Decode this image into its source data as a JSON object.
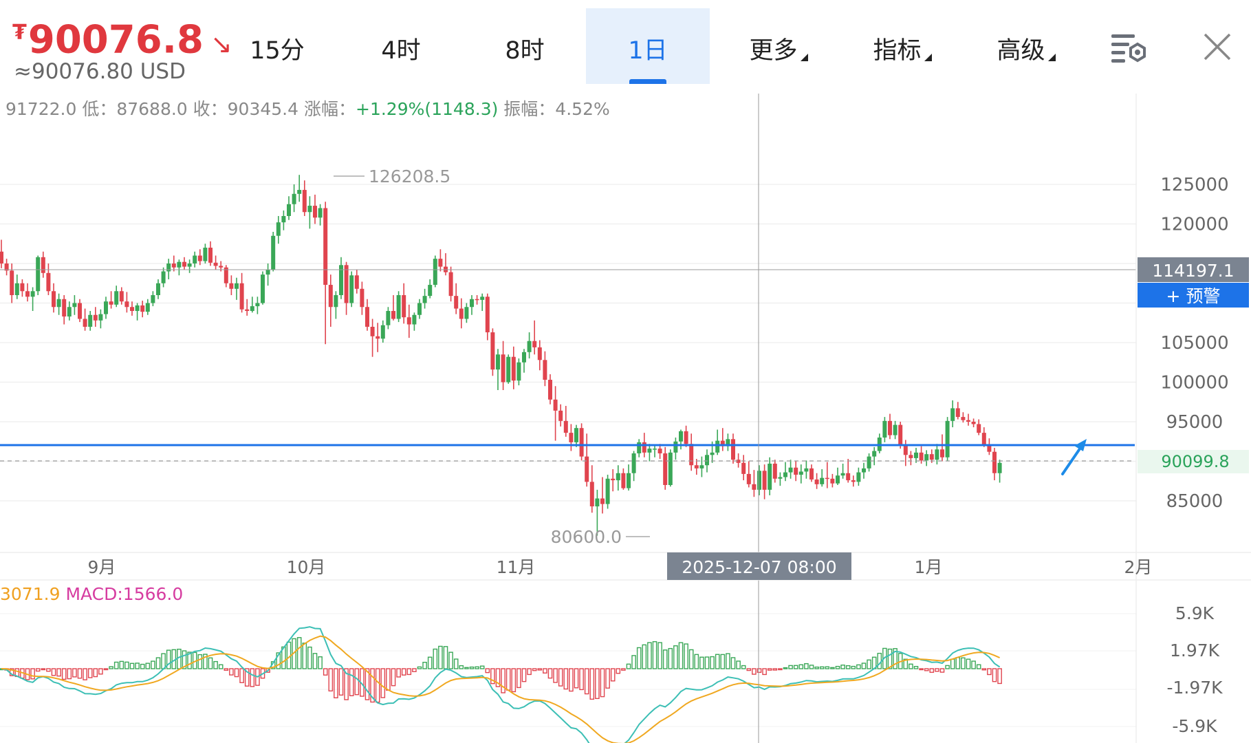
{
  "header": {
    "currency_symbol": "₮",
    "price": "90076.8",
    "trend_arrow": "↘",
    "usd_price": "≈90076.80 USD",
    "tabs": [
      {
        "label": "15分",
        "active": false,
        "dropdown": false
      },
      {
        "label": "4时",
        "active": false,
        "dropdown": false
      },
      {
        "label": "8时",
        "active": false,
        "dropdown": false
      },
      {
        "label": "1日",
        "active": true,
        "dropdown": false
      },
      {
        "label": "更多",
        "active": false,
        "dropdown": true
      },
      {
        "label": "指标",
        "active": false,
        "dropdown": true
      },
      {
        "label": "高级",
        "active": false,
        "dropdown": true
      }
    ],
    "icons": [
      "chart-settings-icon",
      "close-icon"
    ]
  },
  "info_bar": {
    "prefix": "91722.0 低：87688.0 收：90345.4 涨幅：",
    "change": "+1.29%(1148.3)",
    "suffix": " 振幅：4.52%"
  },
  "macd_info": {
    "dea": "3071.9",
    "macd": "MACD:1566.0"
  },
  "colors": {
    "up": "#3aa757",
    "down": "#e0444e",
    "accent": "#1d73e8",
    "dif_line": "#3cbfb5",
    "dea_line": "#f0a820",
    "current_price": "#2aa35a"
  },
  "chart_data": {
    "type": "candlestick",
    "interval": "1日",
    "y_axis_labels": [
      "125000",
      "120000",
      "105000",
      "100000",
      "95000",
      "85000"
    ],
    "y_range": [
      78000,
      134000
    ],
    "x_axis_labels": [
      "9月",
      "10月",
      "11月",
      "1月",
      "2月"
    ],
    "crosshair": {
      "label": "2025-12-07 08:00",
      "price": "114197.1"
    },
    "alert_button": "+ 预警",
    "current_price": "90099.8",
    "high_marker": "126208.5",
    "low_marker": "80600.0",
    "horizontal_line": 92300,
    "candles": [
      [
        116500,
        118000,
        114400,
        115000
      ],
      [
        115000,
        115600,
        113500,
        114100
      ],
      [
        114100,
        115000,
        110000,
        111000
      ],
      [
        111000,
        113600,
        110500,
        112500
      ],
      [
        112500,
        113000,
        110800,
        111500
      ],
      [
        111500,
        112500,
        110200,
        110800
      ],
      [
        110800,
        112000,
        109000,
        111500
      ],
      [
        111500,
        116000,
        111000,
        115800
      ],
      [
        115800,
        116500,
        113200,
        113800
      ],
      [
        113800,
        115000,
        111000,
        111500
      ],
      [
        111500,
        112500,
        108800,
        109500
      ],
      [
        109500,
        111200,
        108500,
        110500
      ],
      [
        110500,
        111000,
        107300,
        108300
      ],
      [
        108300,
        110200,
        107800,
        109500
      ],
      [
        109500,
        111000,
        108500,
        110000
      ],
      [
        110000,
        110500,
        107600,
        108000
      ],
      [
        108000,
        109300,
        106500,
        107000
      ],
      [
        107000,
        109000,
        106500,
        108500
      ],
      [
        108500,
        109500,
        107000,
        107800
      ],
      [
        107800,
        109200,
        106800,
        108600
      ],
      [
        108600,
        110800,
        108000,
        110200
      ],
      [
        110200,
        111500,
        109300,
        109800
      ],
      [
        109800,
        112200,
        109500,
        111500
      ],
      [
        111500,
        112000,
        109800,
        110200
      ],
      [
        110200,
        111400,
        108800,
        109500
      ],
      [
        109500,
        110200,
        108400,
        109000
      ],
      [
        109000,
        110000,
        107800,
        109700
      ],
      [
        109700,
        110300,
        108200,
        108900
      ],
      [
        108900,
        110500,
        108500,
        110000
      ],
      [
        110000,
        111500,
        109600,
        111000
      ],
      [
        111000,
        113000,
        110500,
        112500
      ],
      [
        112500,
        114500,
        112000,
        114000
      ],
      [
        114000,
        115600,
        113000,
        115000
      ],
      [
        115000,
        116000,
        114000,
        114500
      ],
      [
        114500,
        115500,
        113500,
        115200
      ],
      [
        115200,
        115800,
        114200,
        114600
      ],
      [
        114600,
        115500,
        113800,
        115000
      ],
      [
        115000,
        116500,
        114500,
        116000
      ],
      [
        116000,
        116800,
        114800,
        115300
      ],
      [
        115300,
        117500,
        115000,
        117000
      ],
      [
        117000,
        117800,
        114700,
        115100
      ],
      [
        115100,
        116000,
        114200,
        114700
      ],
      [
        114700,
        115300,
        114000,
        114500
      ],
      [
        114500,
        114800,
        112000,
        112500
      ],
      [
        112500,
        113500,
        111000,
        111800
      ],
      [
        111800,
        113200,
        110400,
        112500
      ],
      [
        112500,
        113800,
        108800,
        109200
      ],
      [
        109200,
        110500,
        108400,
        109000
      ],
      [
        109000,
        110800,
        108800,
        109600
      ],
      [
        109600,
        110800,
        108600,
        110000
      ],
      [
        110000,
        114000,
        109800,
        113600
      ],
      [
        113600,
        115000,
        112200,
        114200
      ],
      [
        114200,
        119000,
        114000,
        118500
      ],
      [
        118500,
        121000,
        117500,
        120200
      ],
      [
        120200,
        121700,
        119200,
        121000
      ],
      [
        121000,
        123500,
        120500,
        122500
      ],
      [
        122500,
        125000,
        121500,
        123800
      ],
      [
        123800,
        126200,
        122800,
        124300
      ],
      [
        124300,
        125500,
        121000,
        121500
      ],
      [
        121500,
        123500,
        119400,
        122300
      ],
      [
        122300,
        123700,
        120000,
        120800
      ],
      [
        120800,
        122500,
        119800,
        122000
      ],
      [
        122000,
        122800,
        104800,
        112300
      ],
      [
        112300,
        113600,
        107000,
        109500
      ],
      [
        109500,
        111500,
        108000,
        111000
      ],
      [
        111000,
        115800,
        110500,
        114800
      ],
      [
        114800,
        115200,
        108500,
        110000
      ],
      [
        110000,
        114000,
        109500,
        113500
      ],
      [
        113500,
        114200,
        111200,
        111800
      ],
      [
        111800,
        112700,
        108500,
        109500
      ],
      [
        109500,
        110500,
        106500,
        107000
      ],
      [
        107000,
        108000,
        103200,
        105800
      ],
      [
        105800,
        107500,
        103800,
        105500
      ],
      [
        105500,
        107800,
        105000,
        107200
      ],
      [
        107200,
        109500,
        106700,
        109000
      ],
      [
        109000,
        111000,
        107800,
        108000
      ],
      [
        108000,
        111500,
        107600,
        111000
      ],
      [
        111000,
        112500,
        107400,
        108200
      ],
      [
        108200,
        109800,
        105600,
        107300
      ],
      [
        107300,
        108800,
        106500,
        108500
      ],
      [
        108500,
        110500,
        108000,
        110000
      ],
      [
        110000,
        111800,
        109300,
        110900
      ],
      [
        110900,
        113000,
        110600,
        112300
      ],
      [
        112300,
        116000,
        112000,
        115600
      ],
      [
        115600,
        116800,
        114000,
        114600
      ],
      [
        114600,
        116300,
        113500,
        113900
      ],
      [
        113900,
        114600,
        110200,
        110900
      ],
      [
        110900,
        112500,
        108600,
        109300
      ],
      [
        109300,
        110600,
        106800,
        108000
      ],
      [
        108000,
        110000,
        107500,
        109500
      ],
      [
        109500,
        111000,
        108500,
        110500
      ],
      [
        110500,
        111000,
        109800,
        110400
      ],
      [
        110400,
        111200,
        109000,
        110800
      ],
      [
        110800,
        111200,
        105300,
        106300
      ],
      [
        106300,
        106800,
        100800,
        101600
      ],
      [
        101600,
        104200,
        99000,
        103500
      ],
      [
        103500,
        105200,
        99000,
        100000
      ],
      [
        100000,
        103500,
        99800,
        103200
      ],
      [
        103200,
        104500,
        99100,
        100200
      ],
      [
        100200,
        103000,
        99600,
        102500
      ],
      [
        102500,
        104200,
        101200,
        103800
      ],
      [
        103800,
        106300,
        103000,
        105200
      ],
      [
        105200,
        107800,
        103500,
        104400
      ],
      [
        104400,
        105300,
        101500,
        102800
      ],
      [
        102800,
        103900,
        99500,
        100300
      ],
      [
        100300,
        101000,
        97200,
        97800
      ],
      [
        97800,
        99500,
        92600,
        96400
      ],
      [
        96400,
        97200,
        94400,
        95100
      ],
      [
        95100,
        97000,
        93100,
        93600
      ],
      [
        93600,
        94700,
        91300,
        92400
      ],
      [
        92400,
        94600,
        91800,
        94200
      ],
      [
        94200,
        94800,
        90100,
        90600
      ],
      [
        90600,
        93500,
        86800,
        87400
      ],
      [
        87400,
        89500,
        83500,
        84300
      ],
      [
        84300,
        86400,
        80600,
        85300
      ],
      [
        85300,
        88000,
        83400,
        84600
      ],
      [
        84600,
        88300,
        84000,
        87800
      ],
      [
        87800,
        89000,
        86200,
        87600
      ],
      [
        87600,
        89500,
        86300,
        88500
      ],
      [
        88500,
        89100,
        86400,
        86600
      ],
      [
        86600,
        89600,
        86300,
        88500
      ],
      [
        88500,
        91300,
        87500,
        91000
      ],
      [
        91000,
        92800,
        90500,
        92400
      ],
      [
        92400,
        93600,
        90500,
        91100
      ],
      [
        91100,
        92200,
        90000,
        91600
      ],
      [
        91600,
        92100,
        90500,
        91600
      ],
      [
        91600,
        92200,
        90300,
        91000
      ],
      [
        91000,
        91800,
        86400,
        87000
      ],
      [
        87000,
        91500,
        86800,
        91100
      ],
      [
        91100,
        93000,
        90200,
        92500
      ],
      [
        92500,
        94000,
        91500,
        93800
      ],
      [
        93800,
        94500,
        91800,
        92200
      ],
      [
        92200,
        93500,
        88800,
        89500
      ],
      [
        89500,
        90300,
        88300,
        89100
      ],
      [
        89100,
        90600,
        88000,
        89500
      ],
      [
        89500,
        91500,
        88600,
        90800
      ],
      [
        90800,
        92500,
        89800,
        91100
      ],
      [
        91100,
        94000,
        90800,
        92600
      ],
      [
        92600,
        94200,
        91300,
        91900
      ],
      [
        91900,
        93500,
        91300,
        92800
      ],
      [
        92800,
        93500,
        89700,
        90200
      ],
      [
        90200,
        91000,
        89200,
        89800
      ],
      [
        89800,
        90800,
        87600,
        88400
      ],
      [
        88400,
        90000,
        86700,
        87100
      ],
      [
        87100,
        88900,
        85500,
        86400
      ],
      [
        86400,
        89500,
        85700,
        88800
      ],
      [
        88800,
        89600,
        85200,
        86400
      ],
      [
        86400,
        90500,
        85700,
        89700
      ],
      [
        89700,
        90200,
        87300,
        87800
      ],
      [
        87800,
        88600,
        86900,
        88000
      ],
      [
        88000,
        89900,
        87500,
        88600
      ],
      [
        88600,
        90200,
        87800,
        89200
      ],
      [
        89200,
        90000,
        87500,
        88300
      ],
      [
        88300,
        89600,
        87200,
        88700
      ],
      [
        88700,
        90100,
        87800,
        89100
      ],
      [
        89100,
        89600,
        87400,
        87700
      ],
      [
        87700,
        88500,
        86500,
        87100
      ],
      [
        87100,
        89000,
        86800,
        87900
      ],
      [
        87900,
        89900,
        86600,
        87800
      ],
      [
        87800,
        88400,
        86700,
        87200
      ],
      [
        87200,
        89200,
        87000,
        88200
      ],
      [
        88200,
        89700,
        87800,
        88500
      ],
      [
        88500,
        90300,
        87300,
        87600
      ],
      [
        87600,
        88200,
        86800,
        87400
      ],
      [
        87400,
        89200,
        86900,
        88600
      ],
      [
        88600,
        89800,
        87800,
        89100
      ],
      [
        89100,
        91000,
        88700,
        90600
      ],
      [
        90600,
        91800,
        89500,
        91300
      ],
      [
        91300,
        93500,
        91000,
        93000
      ],
      [
        93000,
        95600,
        92400,
        95100
      ],
      [
        95100,
        96000,
        92800,
        93300
      ],
      [
        93300,
        95100,
        92800,
        94600
      ],
      [
        94600,
        95000,
        91600,
        92000
      ],
      [
        92000,
        92700,
        89400,
        90800
      ],
      [
        90800,
        91300,
        89500,
        90400
      ],
      [
        90400,
        91700,
        89800,
        91100
      ],
      [
        91100,
        91900,
        89700,
        90100
      ],
      [
        90100,
        91400,
        89400,
        90900
      ],
      [
        90900,
        91500,
        89800,
        90200
      ],
      [
        90200,
        92200,
        89600,
        91500
      ],
      [
        91500,
        93400,
        90000,
        90500
      ],
      [
        90500,
        95600,
        90000,
        95100
      ],
      [
        95100,
        97700,
        94300,
        96700
      ],
      [
        96700,
        97500,
        95300,
        95600
      ],
      [
        95600,
        96200,
        94900,
        95200
      ],
      [
        95200,
        96000,
        94500,
        95000
      ],
      [
        95000,
        95400,
        94300,
        94700
      ],
      [
        94700,
        95300,
        93300,
        93600
      ],
      [
        93600,
        94300,
        91800,
        92000
      ],
      [
        92000,
        92900,
        90800,
        91200
      ],
      [
        91200,
        91700,
        87600,
        88500
      ],
      [
        88500,
        90200,
        87300,
        89800
      ]
    ],
    "macd": {
      "y_axis_labels": [
        "5.9K",
        "1.97K",
        "-1.97K",
        "-5.9K"
      ],
      "y_range": [
        -7000,
        7000
      ]
    }
  }
}
